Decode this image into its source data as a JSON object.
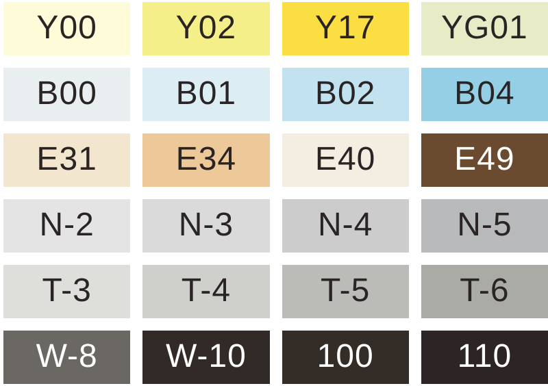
{
  "page": {
    "background": "#ffffff",
    "dark_text_color": "#2b2425",
    "light_text_color": "#ffffff"
  },
  "chart_data": {
    "type": "table",
    "title": "",
    "description_visible_content": "Grid of 24 marker color swatches, 4 columns by 6 rows, each labeled with a color code",
    "columns": 4,
    "rows": 6,
    "cells_row_major": [
      [
        "Y00",
        "Y02",
        "Y17",
        "YG01"
      ],
      [
        "B00",
        "B01",
        "B02",
        "B04"
      ],
      [
        "E31",
        "E34",
        "E40",
        "E49"
      ],
      [
        "N-2",
        "N-3",
        "N-4",
        "N-5"
      ],
      [
        "T-3",
        "T-4",
        "T-5",
        "T-6"
      ],
      [
        "W-8",
        "W-10",
        "100",
        "110"
      ]
    ]
  },
  "swatches": [
    {
      "label": "Y00",
      "bg": "#FEFBD9",
      "fg": "#2b2425",
      "halftone": false
    },
    {
      "label": "Y02",
      "bg": "#F4EF88",
      "fg": "#2b2425",
      "halftone": false
    },
    {
      "label": "Y17",
      "bg": "#FBDF42",
      "fg": "#2b2425",
      "halftone": false
    },
    {
      "label": "YG01",
      "bg": "#E7EBC6",
      "fg": "#2b2425",
      "halftone": false
    },
    {
      "label": "B00",
      "bg": "#E9EFF0",
      "fg": "#2b2425",
      "halftone": true
    },
    {
      "label": "B01",
      "bg": "#DDEDF4",
      "fg": "#2b2425",
      "halftone": false
    },
    {
      "label": "B02",
      "bg": "#C2E2F0",
      "fg": "#2b2425",
      "halftone": false
    },
    {
      "label": "B04",
      "bg": "#95CFE6",
      "fg": "#2b2425",
      "halftone": true
    },
    {
      "label": "E31",
      "bg": "#F2E6CE",
      "fg": "#2b2425",
      "halftone": true
    },
    {
      "label": "E34",
      "bg": "#EDC999",
      "fg": "#2b2425",
      "halftone": false
    },
    {
      "label": "E40",
      "bg": "#F4EDE1",
      "fg": "#2b2425",
      "halftone": false
    },
    {
      "label": "E49",
      "bg": "#6B4B30",
      "fg": "#ffffff",
      "halftone": false
    },
    {
      "label": "N-2",
      "bg": "#E4E4E4",
      "fg": "#2b2425",
      "halftone": false
    },
    {
      "label": "N-3",
      "bg": "#DADADA",
      "fg": "#2b2425",
      "halftone": false
    },
    {
      "label": "N-4",
      "bg": "#CCCCCC",
      "fg": "#2b2425",
      "halftone": false
    },
    {
      "label": "N-5",
      "bg": "#B8B9BB",
      "fg": "#2b2425",
      "halftone": false
    },
    {
      "label": "T-3",
      "bg": "#DEDEDA",
      "fg": "#2b2425",
      "halftone": false
    },
    {
      "label": "T-4",
      "bg": "#CFCFCB",
      "fg": "#2b2425",
      "halftone": false
    },
    {
      "label": "T-5",
      "bg": "#BBBBB7",
      "fg": "#2b2425",
      "halftone": false
    },
    {
      "label": "T-6",
      "bg": "#ABABA5",
      "fg": "#2b2425",
      "halftone": false
    },
    {
      "label": "W-8",
      "bg": "#6B6864",
      "fg": "#ffffff",
      "halftone": false
    },
    {
      "label": "W-10",
      "bg": "#322A26",
      "fg": "#ffffff",
      "halftone": false
    },
    {
      "label": "100",
      "bg": "#342C27",
      "fg": "#ffffff",
      "halftone": false
    },
    {
      "label": "110",
      "bg": "#2D2425",
      "fg": "#ffffff",
      "halftone": false
    }
  ]
}
